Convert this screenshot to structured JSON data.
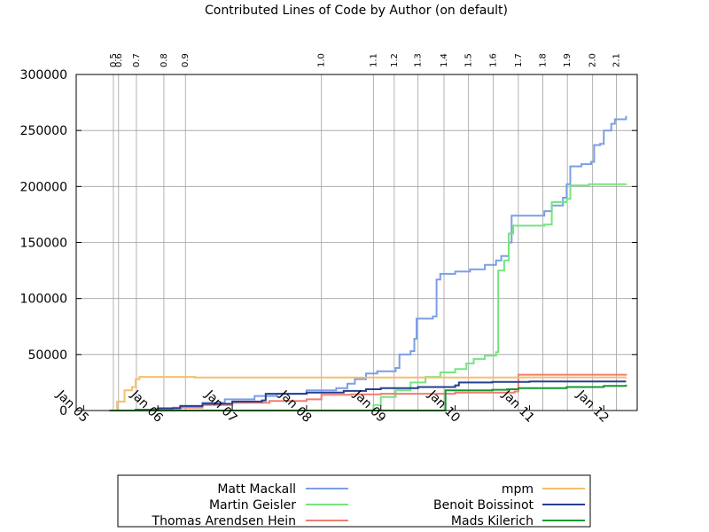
{
  "chart_data": {
    "type": "line",
    "title": "Contributed Lines of Code by Author (on default)",
    "xlabel": "",
    "ylabel": "",
    "xlim": [
      2004.9,
      2012.45
    ],
    "ylim": [
      0,
      300000
    ],
    "grid": true,
    "legend_position": "bottom",
    "y_ticks": [
      0,
      50000,
      100000,
      150000,
      200000,
      250000,
      300000
    ],
    "x_ticks": [
      {
        "label": "Jan 05",
        "x": 2005.0
      },
      {
        "label": "Jan 06",
        "x": 2006.0
      },
      {
        "label": "Jan 07",
        "x": 2007.0
      },
      {
        "label": "Jan 08",
        "x": 2008.0
      },
      {
        "label": "Jan 09",
        "x": 2009.0
      },
      {
        "label": "Jan 10",
        "x": 2010.0
      },
      {
        "label": "Jan 11",
        "x": 2011.0
      },
      {
        "label": "Jan 12",
        "x": 2012.0
      }
    ],
    "releases": [
      {
        "label": "0.5",
        "x": 2005.4
      },
      {
        "label": "0.6",
        "x": 2005.47
      },
      {
        "label": "0.7",
        "x": 2005.71
      },
      {
        "label": "0.8",
        "x": 2006.08
      },
      {
        "label": "0.9",
        "x": 2006.37
      },
      {
        "label": "1.0",
        "x": 2008.2
      },
      {
        "label": "1.1",
        "x": 2008.9
      },
      {
        "label": "1.2",
        "x": 2009.18
      },
      {
        "label": "1.3",
        "x": 2009.5
      },
      {
        "label": "1.4",
        "x": 2009.85
      },
      {
        "label": "1.5",
        "x": 2010.18
      },
      {
        "label": "1.6",
        "x": 2010.51
      },
      {
        "label": "1.7",
        "x": 2010.85
      },
      {
        "label": "1.8",
        "x": 2011.18
      },
      {
        "label": "1.9",
        "x": 2011.51
      },
      {
        "label": "2.0",
        "x": 2011.85
      },
      {
        "label": "2.1",
        "x": 2012.17
      }
    ],
    "series": [
      {
        "name": "Matt Mackall",
        "color": "#7b9ee6",
        "points": [
          [
            2005.35,
            0
          ],
          [
            2005.7,
            800
          ],
          [
            2006.0,
            2000
          ],
          [
            2006.3,
            4000
          ],
          [
            2006.6,
            7000
          ],
          [
            2006.9,
            10000
          ],
          [
            2007.3,
            13000
          ],
          [
            2007.6,
            15000
          ],
          [
            2008.0,
            18000
          ],
          [
            2008.4,
            20000
          ],
          [
            2008.55,
            24000
          ],
          [
            2008.65,
            28000
          ],
          [
            2008.8,
            33000
          ],
          [
            2008.95,
            35000
          ],
          [
            2009.2,
            38000
          ],
          [
            2009.25,
            50000
          ],
          [
            2009.4,
            53000
          ],
          [
            2009.45,
            64000
          ],
          [
            2009.48,
            82000
          ],
          [
            2009.7,
            84000
          ],
          [
            2009.75,
            117000
          ],
          [
            2009.8,
            122000
          ],
          [
            2010.0,
            124000
          ],
          [
            2010.2,
            126000
          ],
          [
            2010.4,
            130000
          ],
          [
            2010.55,
            134000
          ],
          [
            2010.62,
            138000
          ],
          [
            2010.72,
            150000
          ],
          [
            2010.76,
            174000
          ],
          [
            2011.2,
            178000
          ],
          [
            2011.3,
            183000
          ],
          [
            2011.45,
            190000
          ],
          [
            2011.5,
            202000
          ],
          [
            2011.55,
            218000
          ],
          [
            2011.7,
            220000
          ],
          [
            2011.83,
            222000
          ],
          [
            2011.87,
            237000
          ],
          [
            2011.95,
            238000
          ],
          [
            2012.0,
            250000
          ],
          [
            2012.1,
            256000
          ],
          [
            2012.15,
            260000
          ],
          [
            2012.3,
            263000
          ]
        ]
      },
      {
        "name": "Martin Geisler",
        "color": "#74e580",
        "points": [
          [
            2005.35,
            0
          ],
          [
            2008.75,
            0
          ],
          [
            2008.9,
            5000
          ],
          [
            2009.0,
            12000
          ],
          [
            2009.2,
            18000
          ],
          [
            2009.4,
            25000
          ],
          [
            2009.6,
            30000
          ],
          [
            2009.8,
            34000
          ],
          [
            2010.0,
            37000
          ],
          [
            2010.15,
            42000
          ],
          [
            2010.25,
            46000
          ],
          [
            2010.4,
            49000
          ],
          [
            2010.55,
            52000
          ],
          [
            2010.58,
            125000
          ],
          [
            2010.66,
            134000
          ],
          [
            2010.72,
            158000
          ],
          [
            2010.78,
            165000
          ],
          [
            2011.2,
            166000
          ],
          [
            2011.3,
            186000
          ],
          [
            2011.5,
            189000
          ],
          [
            2011.55,
            201000
          ],
          [
            2011.8,
            202000
          ],
          [
            2012.3,
            202500
          ]
        ]
      },
      {
        "name": "Thomas Arendsen Hein",
        "color": "#f07c72",
        "points": [
          [
            2005.35,
            0
          ],
          [
            2005.8,
            500
          ],
          [
            2006.2,
            2500
          ],
          [
            2006.6,
            5000
          ],
          [
            2007.0,
            7000
          ],
          [
            2007.5,
            8500
          ],
          [
            2008.0,
            10000
          ],
          [
            2008.2,
            14000
          ],
          [
            2008.6,
            14500
          ],
          [
            2009.0,
            15000
          ],
          [
            2010.0,
            16000
          ],
          [
            2010.8,
            17000
          ],
          [
            2010.85,
            32000
          ],
          [
            2012.3,
            32500
          ]
        ]
      },
      {
        "name": "mpm",
        "color": "#f6bd6a",
        "points": [
          [
            2005.35,
            0
          ],
          [
            2005.45,
            8000
          ],
          [
            2005.55,
            18000
          ],
          [
            2005.65,
            21000
          ],
          [
            2005.7,
            28000
          ],
          [
            2005.75,
            30000
          ],
          [
            2006.5,
            29500
          ],
          [
            2008.0,
            29500
          ],
          [
            2010.0,
            29500
          ],
          [
            2010.8,
            29600
          ],
          [
            2012.3,
            29800
          ]
        ]
      },
      {
        "name": "Benoit Boissinot",
        "color": "#243f8c",
        "points": [
          [
            2005.35,
            0
          ],
          [
            2005.7,
            500
          ],
          [
            2006.0,
            2000
          ],
          [
            2006.3,
            4000
          ],
          [
            2006.6,
            6000
          ],
          [
            2007.0,
            8000
          ],
          [
            2007.4,
            9000
          ],
          [
            2007.45,
            15000
          ],
          [
            2008.0,
            16000
          ],
          [
            2008.5,
            17500
          ],
          [
            2008.8,
            19000
          ],
          [
            2009.0,
            20000
          ],
          [
            2009.5,
            21000
          ],
          [
            2010.0,
            22500
          ],
          [
            2010.05,
            25000
          ],
          [
            2010.5,
            25500
          ],
          [
            2011.0,
            26000
          ],
          [
            2012.3,
            26000
          ]
        ]
      },
      {
        "name": "Mads Kilerich",
        "color": "#139a2d",
        "points": [
          [
            2005.35,
            0
          ],
          [
            2009.85,
            0
          ],
          [
            2009.87,
            18000
          ],
          [
            2010.5,
            18500
          ],
          [
            2010.7,
            19000
          ],
          [
            2010.85,
            20000
          ],
          [
            2011.5,
            21000
          ],
          [
            2012.0,
            22000
          ],
          [
            2012.3,
            23000
          ]
        ]
      }
    ]
  }
}
